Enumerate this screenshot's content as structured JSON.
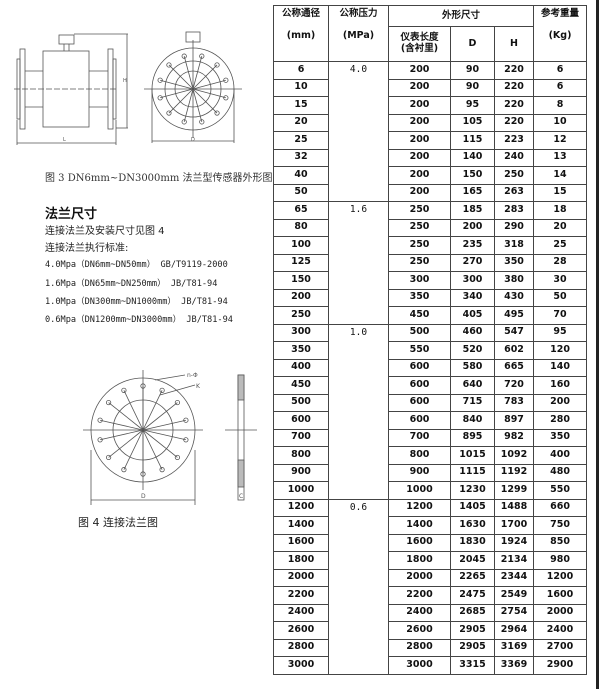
{
  "figure3": {
    "caption": "图 3    DN6mm~DN3000mm 法兰型传感器外形图",
    "labels": {
      "length": "L",
      "height": "H",
      "diameter": "D"
    }
  },
  "flange_section": {
    "title": "法兰尺寸",
    "lines": [
      "连接法兰及安装尺寸见图 4",
      "连接法兰执行标准:"
    ],
    "standards": [
      "4.0Mpa（DN6mm~DN50mm）   GB/T9119-2000",
      "1.6Mpa（DN65mm~DN250mm）   JB/T81-94",
      "1.0Mpa（DN300mm~DN1000mm）   JB/T81-94",
      "0.6Mpa（DN1200mm~DN3000mm）   JB/T81-94"
    ]
  },
  "figure4": {
    "caption": "图 4   连接法兰图",
    "labels": {
      "holes": "n-Φ",
      "circle": "K",
      "diameter": "D",
      "thickness": "C"
    }
  },
  "table": {
    "headers": {
      "dn": "公称通径",
      "dn_unit": "(mm)",
      "pressure": "公称压力",
      "pressure_unit": "(MPa)",
      "dims": "外形尺寸",
      "length": "仪表长度",
      "length_sub": "(含衬里)",
      "d": "D",
      "h": "H",
      "weight": "参考重量",
      "weight_unit": "(Kg)"
    },
    "groups": [
      {
        "pressure": "4.0",
        "rows": [
          [
            "6",
            "200",
            "90",
            "220",
            "6"
          ],
          [
            "10",
            "200",
            "90",
            "220",
            "6"
          ],
          [
            "15",
            "200",
            "95",
            "220",
            "8"
          ],
          [
            "20",
            "200",
            "105",
            "220",
            "10"
          ],
          [
            "25",
            "200",
            "115",
            "223",
            "12"
          ],
          [
            "32",
            "200",
            "140",
            "240",
            "13"
          ],
          [
            "40",
            "200",
            "150",
            "250",
            "14"
          ],
          [
            "50",
            "200",
            "165",
            "263",
            "15"
          ]
        ]
      },
      {
        "pressure": "1.6",
        "rows": [
          [
            "65",
            "250",
            "185",
            "283",
            "18"
          ],
          [
            "80",
            "250",
            "200",
            "290",
            "20"
          ],
          [
            "100",
            "250",
            "235",
            "318",
            "25"
          ],
          [
            "125",
            "250",
            "270",
            "350",
            "28"
          ],
          [
            "150",
            "300",
            "300",
            "380",
            "30"
          ],
          [
            "200",
            "350",
            "340",
            "430",
            "50"
          ],
          [
            "250",
            "450",
            "405",
            "495",
            "70"
          ]
        ]
      },
      {
        "pressure": "1.0",
        "rows": [
          [
            "300",
            "500",
            "460",
            "547",
            "95"
          ],
          [
            "350",
            "550",
            "520",
            "602",
            "120"
          ],
          [
            "400",
            "600",
            "580",
            "665",
            "140"
          ],
          [
            "450",
            "600",
            "640",
            "720",
            "160"
          ],
          [
            "500",
            "600",
            "715",
            "783",
            "200"
          ],
          [
            "600",
            "600",
            "840",
            "897",
            "280"
          ],
          [
            "700",
            "700",
            "895",
            "982",
            "350"
          ],
          [
            "800",
            "800",
            "1015",
            "1092",
            "400"
          ],
          [
            "900",
            "900",
            "1115",
            "1192",
            "480"
          ],
          [
            "1000",
            "1000",
            "1230",
            "1299",
            "550"
          ]
        ]
      },
      {
        "pressure": "0.6",
        "rows": [
          [
            "1200",
            "1200",
            "1405",
            "1488",
            "660"
          ],
          [
            "1400",
            "1400",
            "1630",
            "1700",
            "750"
          ],
          [
            "1600",
            "1600",
            "1830",
            "1924",
            "850"
          ],
          [
            "1800",
            "1800",
            "2045",
            "2134",
            "980"
          ],
          [
            "2000",
            "2000",
            "2265",
            "2344",
            "1200"
          ],
          [
            "2200",
            "2200",
            "2475",
            "2549",
            "1600"
          ],
          [
            "2400",
            "2400",
            "2685",
            "2754",
            "2000"
          ],
          [
            "2600",
            "2600",
            "2905",
            "2964",
            "2400"
          ],
          [
            "2800",
            "2800",
            "2905",
            "3169",
            "2700"
          ],
          [
            "3000",
            "3000",
            "3315",
            "3369",
            "2900"
          ]
        ]
      }
    ]
  }
}
